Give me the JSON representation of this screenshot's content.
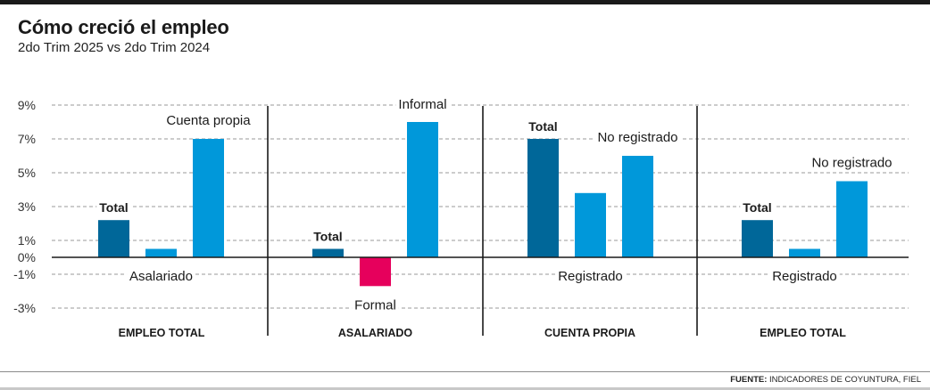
{
  "header": {
    "title": "Cómo creció el empleo",
    "subtitle": "2do Trim 2025 vs 2do Trim 2024"
  },
  "footer": {
    "source_label": "FUENTE:",
    "source_text": " INDICADORES DE COYUNTURA, FIEL"
  },
  "colors": {
    "total": "#006799",
    "component": "#0098da",
    "negative": "#e6005c",
    "grid": "#9a9a9a",
    "axis": "#1a1a1a"
  },
  "chart_data": {
    "type": "bar",
    "title": "Cómo creció el empleo",
    "subtitle": "2do Trim 2025 vs 2do Trim 2024",
    "xlabel": "",
    "ylabel": "",
    "ylim": [
      -3,
      9
    ],
    "yticks": [
      9,
      7,
      5,
      3,
      1,
      0,
      -1,
      -3
    ],
    "ytick_labels": [
      "9%",
      "7%",
      "5%",
      "3%",
      "1%",
      "0%",
      "-1%",
      "-3%"
    ],
    "grid": true,
    "panels": [
      {
        "name": "EMPLEO TOTAL",
        "bars": [
          {
            "label": "Total",
            "value": 2.2,
            "kind": "total"
          },
          {
            "label": "Asalariado",
            "value": 0.5,
            "kind": "component"
          },
          {
            "label": "Cuenta propia",
            "value": 7.0,
            "kind": "component"
          }
        ]
      },
      {
        "name": "ASALARIADO",
        "bars": [
          {
            "label": "Total",
            "value": 0.5,
            "kind": "total"
          },
          {
            "label": "Formal",
            "value": -1.7,
            "kind": "negative"
          },
          {
            "label": "Informal",
            "value": 8.0,
            "kind": "component"
          }
        ]
      },
      {
        "name": "CUENTA PROPIA",
        "bars": [
          {
            "label": "Total",
            "value": 7.0,
            "kind": "total"
          },
          {
            "label": "Registrado",
            "value": 3.8,
            "kind": "component"
          },
          {
            "label": "No registrado",
            "value": 6.0,
            "kind": "component"
          }
        ]
      },
      {
        "name": "EMPLEO TOTAL",
        "bars": [
          {
            "label": "Total",
            "value": 2.2,
            "kind": "total"
          },
          {
            "label": "Registrado",
            "value": 0.5,
            "kind": "component"
          },
          {
            "label": "No registrado",
            "value": 4.5,
            "kind": "component"
          }
        ]
      }
    ]
  }
}
